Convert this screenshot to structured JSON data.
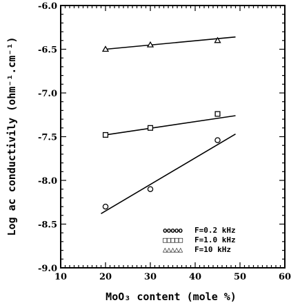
{
  "chart_data": {
    "type": "scatter",
    "xlabel": "MoO₃ content (mole %)",
    "ylabel": "Log ac conductivily (ohm⁻¹.cm⁻¹)",
    "xlim": [
      10,
      60
    ],
    "ylim": [
      -9.0,
      -6.0
    ],
    "xticks": [
      "10",
      "20",
      "30",
      "40",
      "50",
      "60"
    ],
    "yticks": [
      "-6.0",
      "-6.5",
      "-7.0",
      "-7.5",
      "-8.0",
      "-8.5",
      "-9.0"
    ],
    "grid": false,
    "legend_position": "bottom-right",
    "series": [
      {
        "name": "F=0.2  kHz",
        "legend_marks": "ooooo",
        "marker": "circle",
        "x": [
          20,
          30,
          45
        ],
        "y": [
          -8.3,
          -8.1,
          -7.54
        ],
        "fit": {
          "x": [
            19,
            49
          ],
          "y": [
            -8.38,
            -7.47
          ]
        }
      },
      {
        "name": "F=1.0  kHz",
        "legend_marks": "□□□□□",
        "marker": "square",
        "x": [
          20,
          30,
          45
        ],
        "y": [
          -7.48,
          -7.4,
          -7.24
        ],
        "fit": {
          "x": [
            20,
            49
          ],
          "y": [
            -7.48,
            -7.26
          ]
        }
      },
      {
        "name": "F=10    kHz",
        "legend_marks": "△△△△△",
        "marker": "triangle",
        "x": [
          20,
          30,
          45
        ],
        "y": [
          -6.5,
          -6.45,
          -6.4
        ],
        "fit": {
          "x": [
            20,
            49
          ],
          "y": [
            -6.5,
            -6.36
          ]
        }
      }
    ]
  }
}
